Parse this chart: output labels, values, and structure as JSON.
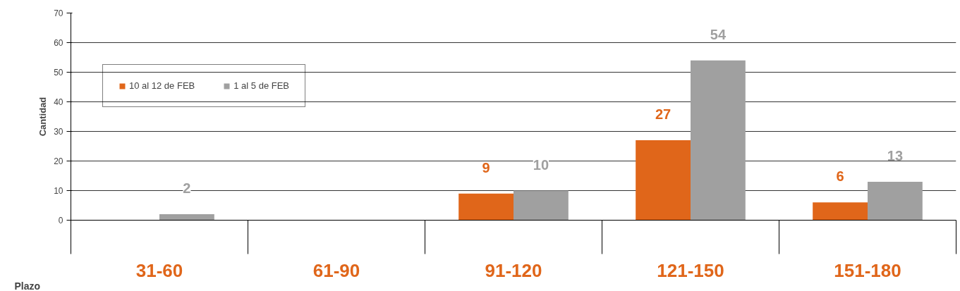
{
  "chart_data": {
    "type": "bar",
    "xlabel": "Plazo",
    "ylabel": "Cantidad",
    "categories": [
      "31-60",
      "61-90",
      "91-120",
      "121-150",
      "151-180"
    ],
    "series": [
      {
        "name": "10 al 12 de FEB",
        "color": "#e0661a",
        "values": [
          null,
          null,
          9,
          27,
          6
        ]
      },
      {
        "name": "1 al 5 de FEB",
        "color": "#a0a0a0",
        "values": [
          2,
          null,
          10,
          54,
          13
        ]
      }
    ],
    "ylim": [
      0,
      70
    ],
    "yticks": [
      0,
      10,
      20,
      30,
      40,
      50,
      60,
      70
    ],
    "grid": "y",
    "legend": "top left",
    "data_labels": true
  }
}
